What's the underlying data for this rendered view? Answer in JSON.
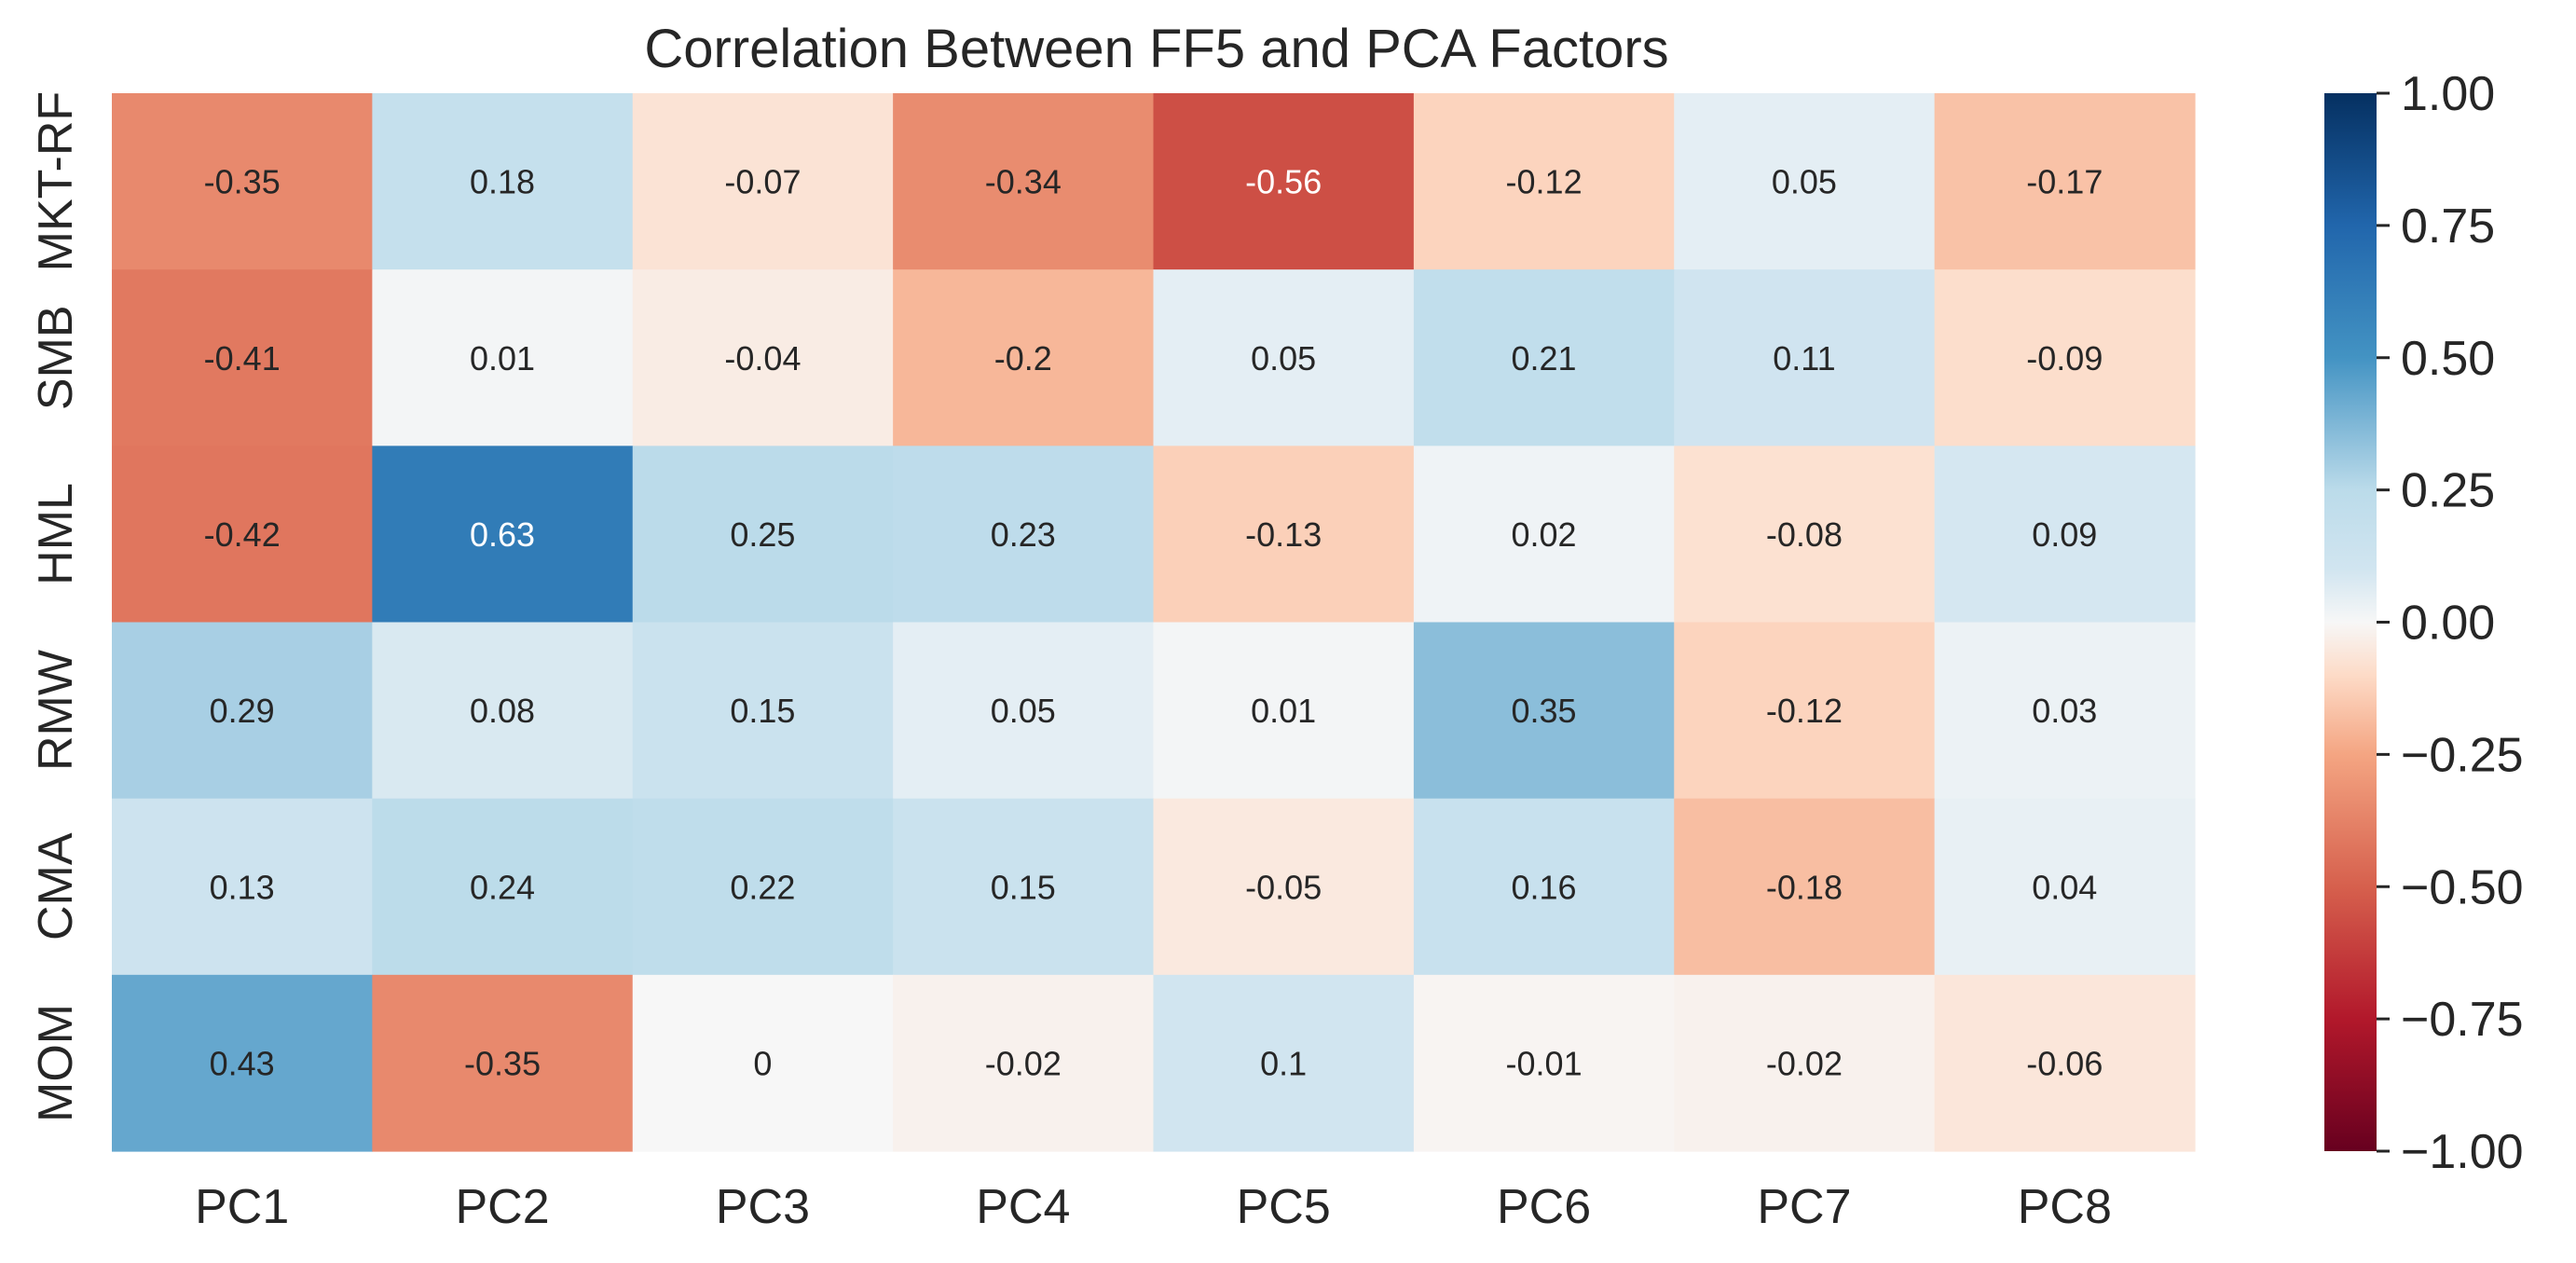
{
  "chart_data": {
    "type": "heatmap",
    "title": "Correlation Between FF5 and PCA Factors",
    "rows": [
      "MKT-RF",
      "SMB",
      "HML",
      "RMW",
      "CMA",
      "MOM"
    ],
    "columns": [
      "PC1",
      "PC2",
      "PC3",
      "PC4",
      "PC5",
      "PC6",
      "PC7",
      "PC8"
    ],
    "values": [
      [
        -0.35,
        0.18,
        -0.07,
        -0.34,
        -0.56,
        -0.12,
        0.05,
        -0.17
      ],
      [
        -0.41,
        0.01,
        -0.04,
        -0.2,
        0.05,
        0.21,
        0.11,
        -0.09
      ],
      [
        -0.42,
        0.63,
        0.25,
        0.23,
        -0.13,
        0.02,
        -0.08,
        0.09
      ],
      [
        0.29,
        0.08,
        0.15,
        0.05,
        0.01,
        0.35,
        -0.12,
        0.03
      ],
      [
        0.13,
        0.24,
        0.22,
        0.15,
        -0.05,
        0.16,
        -0.18,
        0.04
      ],
      [
        0.43,
        -0.35,
        0,
        -0.02,
        0.1,
        -0.01,
        -0.02,
        -0.06
      ]
    ],
    "value_labels": [
      [
        "-0.35",
        "0.18",
        "-0.07",
        "-0.34",
        "-0.56",
        "-0.12",
        "0.05",
        "-0.17"
      ],
      [
        "-0.41",
        "0.01",
        "-0.04",
        "-0.2",
        "0.05",
        "0.21",
        "0.11",
        "-0.09"
      ],
      [
        "-0.42",
        "0.63",
        "0.25",
        "0.23",
        "-0.13",
        "0.02",
        "-0.08",
        "0.09"
      ],
      [
        "0.29",
        "0.08",
        "0.15",
        "0.05",
        "0.01",
        "0.35",
        "-0.12",
        "0.03"
      ],
      [
        "0.13",
        "0.24",
        "0.22",
        "0.15",
        "-0.05",
        "0.16",
        "-0.18",
        "0.04"
      ],
      [
        "0.43",
        "-0.35",
        "0",
        "-0.02",
        "0.1",
        "-0.01",
        "-0.02",
        "-0.06"
      ]
    ],
    "colormap": "RdBu",
    "vmin": -1.0,
    "vmax": 1.0,
    "colorbar_ticks": [
      1.0,
      0.75,
      0.5,
      0.25,
      0.0,
      -0.25,
      -0.5,
      -0.75,
      -1.0
    ],
    "colorbar_tick_labels": [
      "1.00",
      "0.75",
      "0.50",
      "0.25",
      "0.00",
      "−0.25",
      "−0.50",
      "−0.75",
      "−1.00"
    ],
    "colors": {
      "low": "#67001f",
      "high": "#053061",
      "text_dark": "#262626",
      "text_light": "#ffffff"
    }
  }
}
